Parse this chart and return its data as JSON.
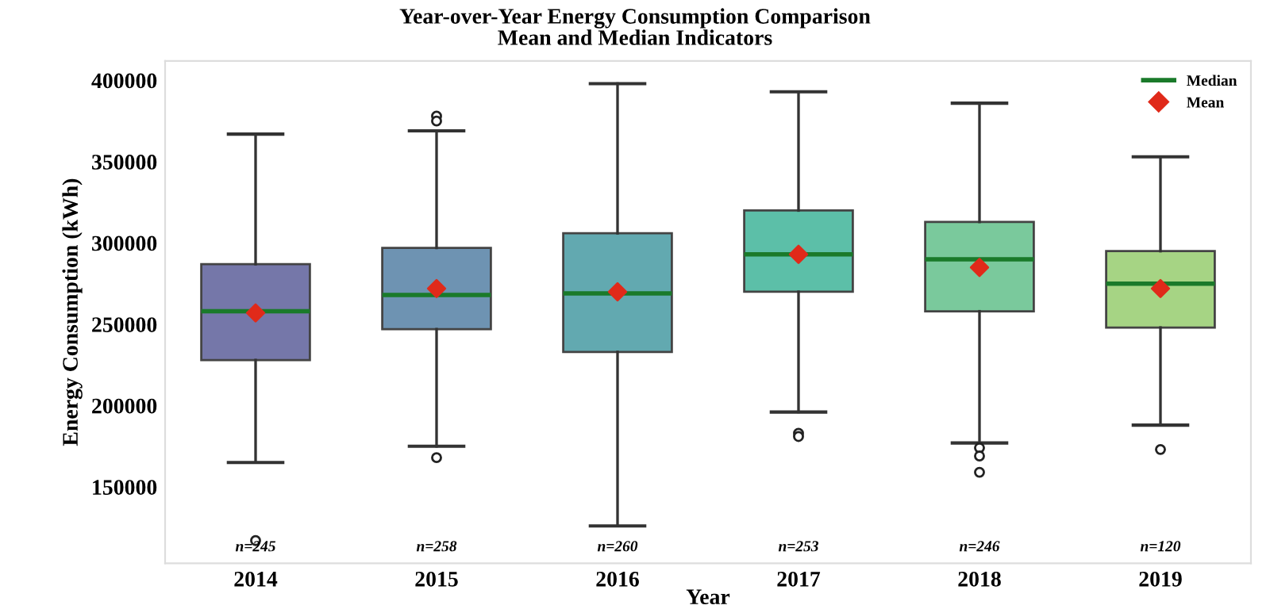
{
  "chart_data": {
    "type": "box",
    "title": "Year-over-Year Energy Consumption Comparison",
    "subtitle": "Mean and Median Indicators",
    "xlabel": "Year",
    "ylabel": "Energy Consumption (kWh)",
    "categories": [
      "2014",
      "2015",
      "2016",
      "2017",
      "2018",
      "2019"
    ],
    "series": [
      {
        "name": "Median",
        "color": "#1a7a2a",
        "colors": [
          "#7577a9",
          "#6e93b2",
          "#62a9b0",
          "#5cbfa8",
          "#7ac99c",
          "#a6d484"
        ],
        "boxes": [
          {
            "low": 165000,
            "q1": 228000,
            "median": 258000,
            "q3": 287000,
            "high": 367000,
            "outliers": [
              117000
            ]
          },
          {
            "low": 175000,
            "q1": 247000,
            "median": 268000,
            "q3": 297000,
            "high": 369000,
            "outliers": [
              378000,
              375000,
              168000
            ]
          },
          {
            "low": 126000,
            "q1": 233000,
            "median": 269000,
            "q3": 306000,
            "high": 398000
          },
          {
            "low": 196000,
            "q1": 270000,
            "median": 293000,
            "q3": 320000,
            "high": 393000,
            "outliers": [
              183000,
              181000
            ]
          },
          {
            "low": 177000,
            "q1": 258000,
            "median": 290000,
            "q3": 313000,
            "high": 386000,
            "outliers": [
              174000,
              169000,
              159000
            ]
          },
          {
            "low": 188000,
            "q1": 248000,
            "median": 275000,
            "q3": 295000,
            "high": 353000,
            "outliers": [
              173000
            ]
          }
        ]
      },
      {
        "type": "scatter",
        "name": "Mean",
        "color": "#e02a1a",
        "marker": "diamond",
        "values": [
          257000,
          272000,
          270000,
          293000,
          285000,
          272000
        ]
      }
    ],
    "annotations": [
      "n=245",
      "n=258",
      "n=260",
      "n=253",
      "n=246",
      "n=120"
    ],
    "ylim": [
      103000,
      412000
    ],
    "yticks": [
      150000,
      200000,
      250000,
      300000,
      350000,
      400000
    ],
    "grid": false,
    "legend": "top right"
  }
}
